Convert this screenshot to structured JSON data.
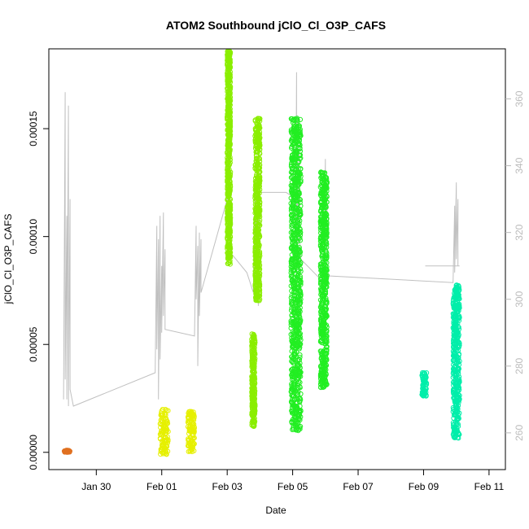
{
  "chart_data": {
    "type": "scatter",
    "title": "ATOM2 Southbound jClO_Cl_O3P_CAFS",
    "xlabel": "Date",
    "ylabel": "jClO_Cl_O3P_CAFS",
    "x_ticks": [
      "Jan 30",
      "Feb 01",
      "Feb 03",
      "Feb 05",
      "Feb 07",
      "Feb 09",
      "Feb 11"
    ],
    "x_tick_days": [
      30,
      32,
      34,
      36,
      38,
      40,
      42
    ],
    "xlim": [
      28.55,
      42.5
    ],
    "y_ticks": [
      "0.00000",
      "0.00005",
      "0.00010",
      "0.00015"
    ],
    "y_tick_values": [
      0,
      5e-05,
      0.0001,
      0.00015
    ],
    "ylim": [
      -8e-06,
      0.000187
    ],
    "y2_ticks": [
      "260",
      "280",
      "300",
      "320",
      "340",
      "360"
    ],
    "y2_tick_values": [
      260,
      280,
      300,
      320,
      340,
      360
    ],
    "y2lim": [
      249,
      375
    ],
    "series": [
      {
        "color": "#e07020",
        "clusters": [
          {
            "x": [
              29.0,
              29.2
            ],
            "y": [
              0.0,
              1e-06
            ]
          }
        ]
      },
      {
        "color": "#e6f000",
        "clusters": [
          {
            "x": [
              31.95,
              32.2
            ],
            "y": [
              -1e-06,
              2e-05
            ]
          },
          {
            "x": [
              32.8,
              33.0
            ],
            "y": [
              0.0,
              1.9e-05
            ]
          }
        ]
      },
      {
        "color": "#8aee00",
        "clusters": [
          {
            "x": [
              34.0,
              34.1
            ],
            "y": [
              8.7e-05,
              0.000186
            ]
          },
          {
            "x": [
              34.75,
              34.85
            ],
            "y": [
              1.2e-05,
              5.5e-05
            ]
          },
          {
            "x": [
              34.85,
              35.0
            ],
            "y": [
              7e-05,
              0.000155
            ]
          }
        ]
      },
      {
        "color": "#22ee22",
        "clusters": [
          {
            "x": [
              35.95,
              36.25
            ],
            "y": [
              1e-05,
              0.000155
            ]
          },
          {
            "x": [
              36.85,
              37.05
            ],
            "y": [
              3e-05,
              0.00013
            ]
          }
        ]
      },
      {
        "color": "#00eeaa",
        "clusters": [
          {
            "x": [
              39.95,
              40.1
            ],
            "y": [
              2.6e-05,
              3.7e-05
            ]
          },
          {
            "x": [
              40.9,
              41.1
            ],
            "y": [
              6e-06,
              7.8e-05
            ]
          }
        ]
      }
    ],
    "secondary_line": {
      "color": "#c0c0c0",
      "x": [
        29.0,
        29.05,
        29.05,
        29.1,
        29.1,
        29.15,
        29.15,
        29.2,
        29.2,
        29.3,
        31.8,
        31.85,
        31.85,
        31.9,
        31.9,
        31.95,
        31.95,
        32.0,
        32.0,
        32.05,
        32.05,
        32.1,
        32.1,
        33.0,
        33.05,
        33.05,
        33.1,
        33.1,
        33.15,
        33.15,
        33.2,
        33.2,
        34.0,
        34.02,
        34.02,
        34.04,
        34.04,
        34.06,
        34.06,
        34.08,
        34.08,
        34.1,
        34.6,
        34.8,
        34.85,
        34.85,
        34.9,
        34.9,
        34.95,
        34.95,
        35.0,
        35.8,
        36.1,
        36.12,
        36.12,
        36.15,
        36.15,
        36.2,
        36.2,
        36.25,
        36.95,
        37.0,
        37.0,
        37.05,
        37.05,
        37.1,
        40.9,
        40.95,
        40.95,
        41.0,
        41.0,
        41.05,
        41.05,
        41.1,
        40.05,
        40.05,
        41.1
      ],
      "y": [
        270,
        362,
        276,
        325,
        270,
        358,
        268,
        330,
        273,
        268,
        278,
        322,
        285,
        318,
        270,
        325,
        282,
        310,
        290,
        326,
        295,
        315,
        291,
        289,
        322,
        300,
        316,
        280,
        320,
        295,
        318,
        302,
        330,
        368,
        330,
        350,
        320,
        355,
        325,
        345,
        318,
        314,
        308,
        302,
        335,
        300,
        340,
        305,
        335,
        298,
        332,
        332,
        330,
        368,
        300,
        355,
        310,
        345,
        320,
        312,
        305,
        342,
        318,
        335,
        311,
        307,
        305,
        328,
        308,
        335,
        312,
        330,
        310,
        310,
        310,
        310,
        310
      ]
    }
  }
}
